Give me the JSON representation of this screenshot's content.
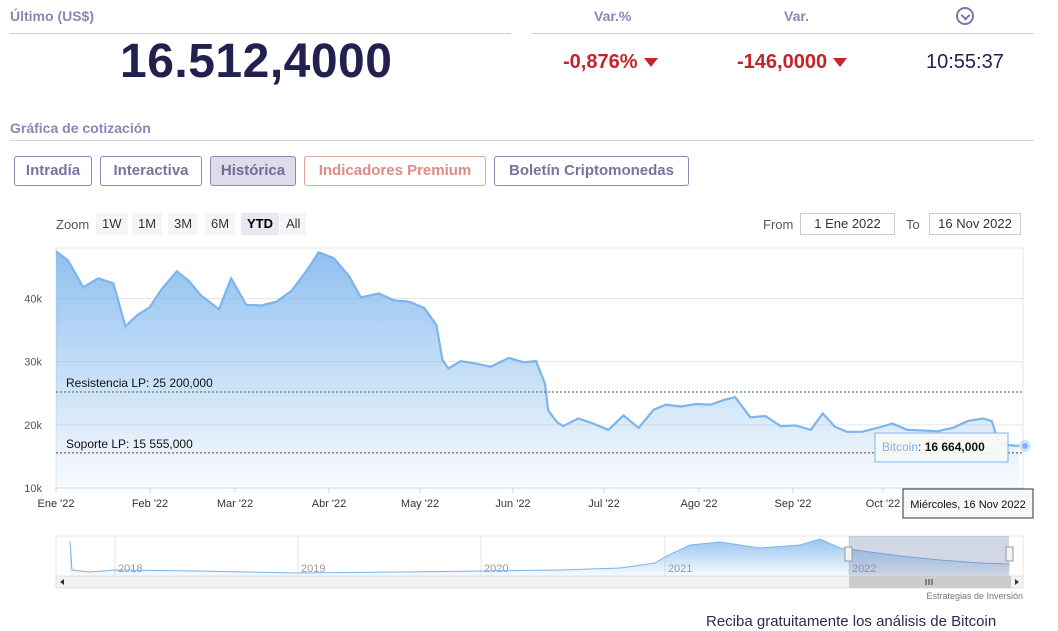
{
  "header": {
    "last_label": "Último (US$)",
    "price": "16.512,4000",
    "varpct_label": "Var.%",
    "varpct": "-0,876%",
    "var_label": "Var.",
    "var": "-146,0000",
    "time": "10:55:37"
  },
  "section_title": "Gráfica de cotización",
  "tabs": [
    {
      "label": "Intradía"
    },
    {
      "label": "Interactiva"
    },
    {
      "label": "Histórica"
    },
    {
      "label": "Indicadores Premium"
    },
    {
      "label": "Boletín Criptomonedas"
    }
  ],
  "zoom": {
    "label": "Zoom",
    "buttons": [
      "1W",
      "1M",
      "3M",
      "6M",
      "YTD",
      "All"
    ],
    "selected": "YTD",
    "from_label": "From",
    "from_value": "1 Ene 2022",
    "to_label": "To",
    "to_value": "16 Nov 2022"
  },
  "chart_data": {
    "type": "area",
    "x_ticks": [
      "Ene '22",
      "Feb '22",
      "Mar '22",
      "Abr '22",
      "May '22",
      "Jun '22",
      "Jul '22",
      "Ago '22",
      "Sep '22",
      "Oct '22"
    ],
    "y_ticks": [
      "10k",
      "20k",
      "30k",
      "40k"
    ],
    "ylim": [
      10000,
      48000
    ],
    "series": [
      {
        "name": "Bitcoin",
        "color": "#7cb5ec",
        "x": [
          "2022-01-01",
          "2022-01-05",
          "2022-01-10",
          "2022-01-15",
          "2022-01-20",
          "2022-01-24",
          "2022-01-28",
          "2022-02-01",
          "2022-02-05",
          "2022-02-10",
          "2022-02-14",
          "2022-02-18",
          "2022-02-24",
          "2022-02-28",
          "2022-03-05",
          "2022-03-10",
          "2022-03-15",
          "2022-03-20",
          "2022-03-25",
          "2022-03-29",
          "2022-04-03",
          "2022-04-08",
          "2022-04-12",
          "2022-04-18",
          "2022-04-23",
          "2022-04-28",
          "2022-05-03",
          "2022-05-07",
          "2022-05-09",
          "2022-05-11",
          "2022-05-15",
          "2022-05-20",
          "2022-05-25",
          "2022-05-31",
          "2022-06-05",
          "2022-06-09",
          "2022-06-12",
          "2022-06-13",
          "2022-06-16",
          "2022-06-18",
          "2022-06-23",
          "2022-06-28",
          "2022-07-03",
          "2022-07-08",
          "2022-07-13",
          "2022-07-18",
          "2022-07-22",
          "2022-07-27",
          "2022-08-01",
          "2022-08-06",
          "2022-08-10",
          "2022-08-14",
          "2022-08-19",
          "2022-08-24",
          "2022-08-29",
          "2022-09-03",
          "2022-09-08",
          "2022-09-12",
          "2022-09-16",
          "2022-09-20",
          "2022-09-25",
          "2022-09-30",
          "2022-10-05",
          "2022-10-10",
          "2022-10-15",
          "2022-10-20",
          "2022-10-25",
          "2022-10-30",
          "2022-11-04",
          "2022-11-07",
          "2022-11-09",
          "2022-11-12",
          "2022-11-16"
        ],
        "y": [
          47500,
          46000,
          41800,
          43200,
          42400,
          35600,
          37400,
          38600,
          41500,
          44300,
          42800,
          40500,
          38300,
          43200,
          39000,
          38900,
          39500,
          41200,
          44400,
          47300,
          46400,
          43600,
          40200,
          40800,
          39700,
          39500,
          38500,
          35800,
          30300,
          28900,
          30100,
          29700,
          29200,
          30600,
          29900,
          30100,
          26500,
          22300,
          20400,
          19800,
          21000,
          20200,
          19200,
          21500,
          19500,
          22400,
          23200,
          22900,
          23300,
          23200,
          23900,
          24400,
          21200,
          21400,
          19800,
          19900,
          19200,
          21800,
          19700,
          18900,
          18900,
          19500,
          20200,
          19200,
          19100,
          19000,
          19500,
          20600,
          21000,
          20600,
          17500,
          16800,
          16664
        ]
      }
    ],
    "annotations": [
      {
        "label": "Resistencia LP: 25 200,000",
        "value": 25200,
        "color": "#2a6a2a"
      },
      {
        "label": "Soporte LP: 15 555,000",
        "value": 15555,
        "color": "#a02020"
      }
    ],
    "tooltip": {
      "series": "Bitcoin",
      "separator": ":",
      "value": "16 664,000",
      "date": "Miércoles, 16 Nov 2022"
    },
    "navigator": {
      "year_labels": [
        "2018",
        "2019",
        "2020",
        "2021",
        "2022"
      ]
    },
    "credit": "Estrategias de Inversión"
  },
  "footer": {
    "text": "Reciba gratuitamente los análisis de Bitcoin"
  }
}
